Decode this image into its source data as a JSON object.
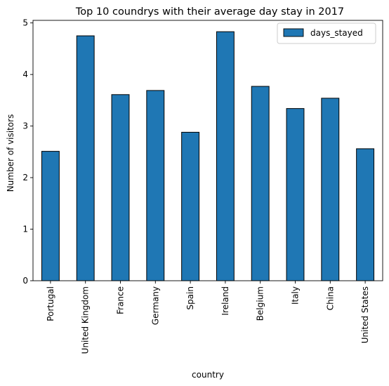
{
  "chart_data": {
    "type": "bar",
    "title": "Top 10 coundrys with their average day stay in 2017",
    "xlabel": "country",
    "ylabel": "Number of visitors",
    "categories": [
      "Portugal",
      "United Kingdom",
      "France",
      "Germany",
      "Spain",
      "Ireland",
      "Belgium",
      "Italy",
      "China",
      "United States"
    ],
    "series": [
      {
        "name": "days_stayed",
        "values": [
          2.51,
          4.75,
          3.61,
          3.69,
          2.88,
          4.83,
          3.77,
          3.34,
          3.54,
          2.56
        ]
      }
    ],
    "ylim": [
      0,
      5.05
    ],
    "yticks": [
      0,
      1,
      2,
      3,
      4,
      5
    ],
    "grid": false,
    "legend": "top-right",
    "colors": {
      "bar": "#1f77b4",
      "edge": "#000000"
    }
  }
}
